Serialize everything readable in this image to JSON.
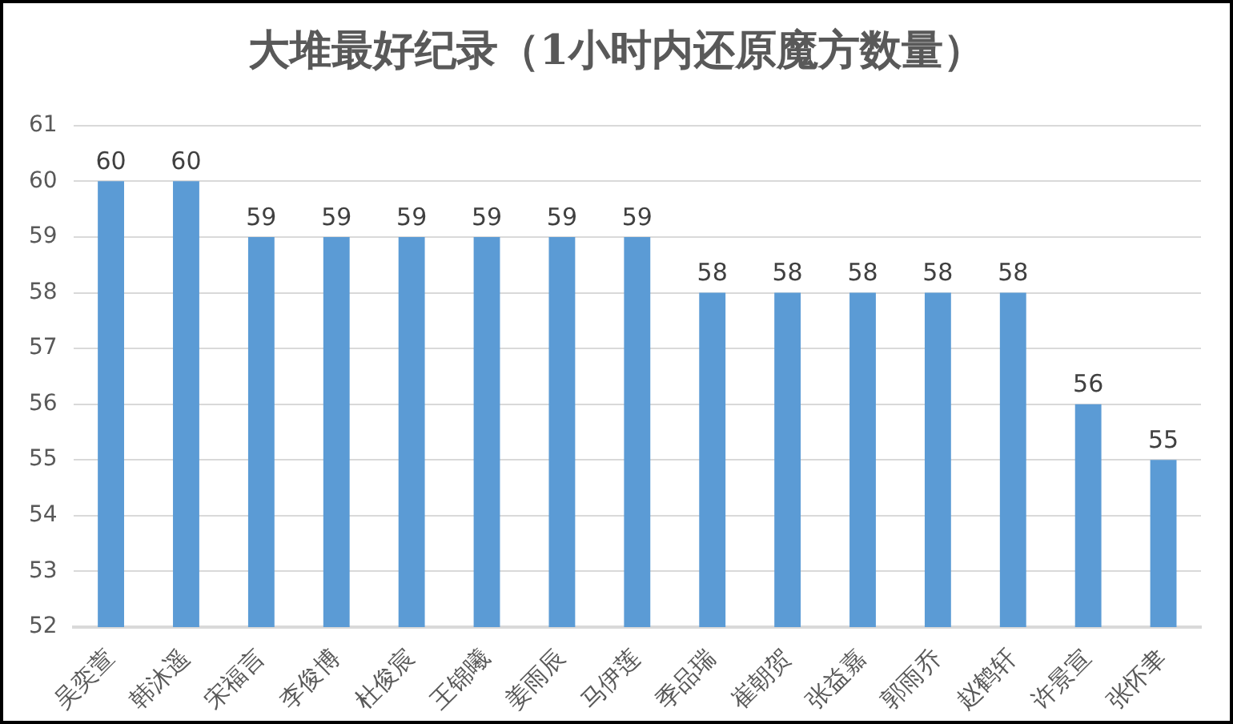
{
  "chart_data": {
    "type": "bar",
    "title": "大堆最好纪录（1小时内还原魔方数量）",
    "categories": [
      "吴奕萱",
      "韩沐遥",
      "宋福言",
      "李俊博",
      "杜俊宸",
      "王锦曦",
      "姜雨辰",
      "马伊莲",
      "季品瑞",
      "崔朝贺",
      "张益嘉",
      "郭雨乔",
      "赵鹤轩",
      "许景宣",
      "张怀聿"
    ],
    "values": [
      60,
      60,
      59,
      59,
      59,
      59,
      59,
      59,
      58,
      58,
      58,
      58,
      58,
      56,
      55
    ],
    "color": "#5b9bd5",
    "ylim": [
      52,
      61
    ],
    "yticks": [
      52,
      53,
      54,
      55,
      56,
      57,
      58,
      59,
      60,
      61
    ],
    "grid": "y",
    "data_labels": true
  }
}
